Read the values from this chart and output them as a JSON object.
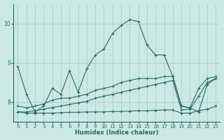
{
  "xlabel": "Humidex (Indice chaleur)",
  "xlim": [
    -0.5,
    23.5
  ],
  "ylim": [
    7.5,
    10.5
  ],
  "xticks": [
    0,
    1,
    2,
    3,
    4,
    5,
    6,
    7,
    8,
    9,
    10,
    11,
    12,
    13,
    14,
    15,
    16,
    17,
    18,
    19,
    20,
    21,
    22,
    23
  ],
  "yticks": [
    8,
    9,
    10
  ],
  "bg_color": "#cce8e5",
  "grid_color": "#aacfcc",
  "line_color": "#1e6e65",
  "lines": [
    {
      "x": [
        0,
        1,
        2,
        3,
        4,
        5,
        6,
        7,
        8,
        9,
        10,
        11,
        12,
        13,
        14,
        15,
        16,
        17,
        18,
        19,
        20,
        21,
        22,
        23
      ],
      "y": [
        8.9,
        8.2,
        7.75,
        7.9,
        8.35,
        8.2,
        8.8,
        8.25,
        8.85,
        9.2,
        9.35,
        9.75,
        9.95,
        10.1,
        10.05,
        9.45,
        9.2,
        9.2,
        8.65,
        7.9,
        7.85,
        7.75,
        8.45,
        8.6
      ],
      "marker": "+"
    },
    {
      "x": [
        0,
        1,
        2,
        3,
        4,
        5,
        6,
        7,
        8,
        9,
        10,
        11,
        12,
        13,
        14,
        15,
        16,
        17,
        18,
        19,
        20,
        21,
        22,
        23
      ],
      "y": [
        7.9,
        7.85,
        7.9,
        7.95,
        8.05,
        8.1,
        8.1,
        8.15,
        8.2,
        8.3,
        8.35,
        8.4,
        8.5,
        8.55,
        8.6,
        8.6,
        8.6,
        8.65,
        8.65,
        7.9,
        7.85,
        8.35,
        8.6,
        8.65
      ],
      "marker": "+"
    },
    {
      "x": [
        0,
        1,
        2,
        3,
        4,
        5,
        6,
        7,
        8,
        9,
        10,
        11,
        12,
        13,
        14,
        15,
        16,
        17,
        18,
        19,
        20,
        21,
        22,
        23
      ],
      "y": [
        7.75,
        7.75,
        7.78,
        7.82,
        7.86,
        7.9,
        7.94,
        7.98,
        8.02,
        8.1,
        8.15,
        8.2,
        8.25,
        8.3,
        8.35,
        8.4,
        8.45,
        8.5,
        8.55,
        7.8,
        7.82,
        8.15,
        8.5,
        8.6
      ],
      "marker": "+"
    },
    {
      "x": [
        0,
        1,
        2,
        3,
        4,
        5,
        6,
        7,
        8,
        9,
        10,
        11,
        12,
        13,
        14,
        15,
        16,
        17,
        18,
        19,
        20,
        21,
        22,
        23
      ],
      "y": [
        7.75,
        7.72,
        7.72,
        7.72,
        7.72,
        7.73,
        7.74,
        7.74,
        7.75,
        7.75,
        7.75,
        7.76,
        7.76,
        7.77,
        7.78,
        7.78,
        7.79,
        7.8,
        7.8,
        7.72,
        7.72,
        7.78,
        7.82,
        7.9
      ],
      "marker": "+"
    }
  ]
}
